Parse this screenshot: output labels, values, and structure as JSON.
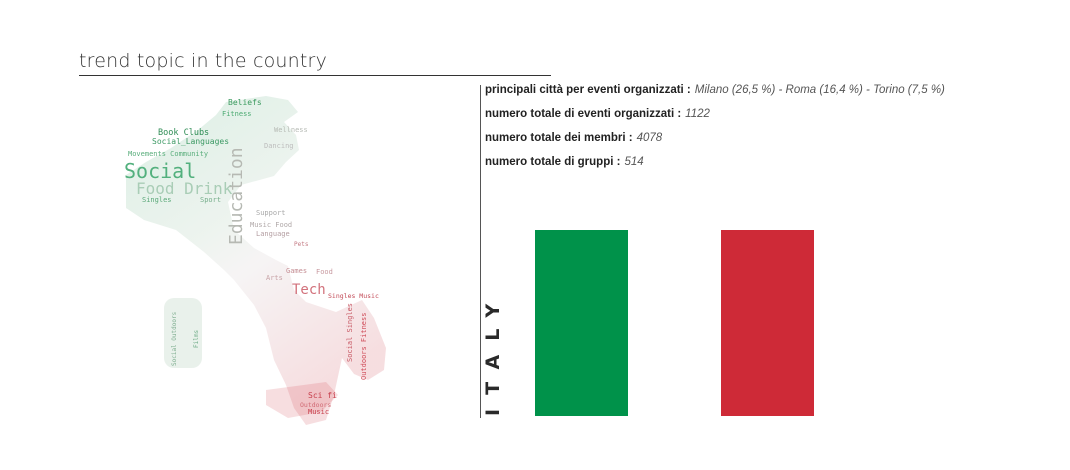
{
  "header": {
    "title": "trend topic in the country"
  },
  "stats": [
    {
      "label": "principali città per eventi organizzati :",
      "value": "Milano (26,5 %) - Roma (16,4 %) - Torino (7,5 %)"
    },
    {
      "label": "numero totale di eventi organizzati :",
      "value": "1122"
    },
    {
      "label": "numero totale dei membri :",
      "value": "4078"
    },
    {
      "label": "numero totale di gruppi :",
      "value": "514"
    }
  ],
  "country": {
    "name": "ITALY"
  },
  "flag": {
    "colors": [
      "#00924a",
      "#ffffff",
      "#ce2a37"
    ]
  },
  "wordcloud": {
    "words": [
      "Beliefs",
      "Fitness",
      "Book Clubs",
      "Social",
      "Languages",
      "Movements",
      "Community",
      "Social",
      "Food Drink",
      "Singles",
      "Sports",
      "Education",
      "Support",
      "Music",
      "Language",
      "Pets",
      "Games",
      "Food",
      "Tech",
      "Singles Music",
      "Outdoors Fitness",
      "Social Singles",
      "Sci fi",
      "Outdoors",
      "Music",
      "Wellness",
      "Dancing",
      "Films",
      "Arts",
      "Social Outdoors"
    ]
  }
}
